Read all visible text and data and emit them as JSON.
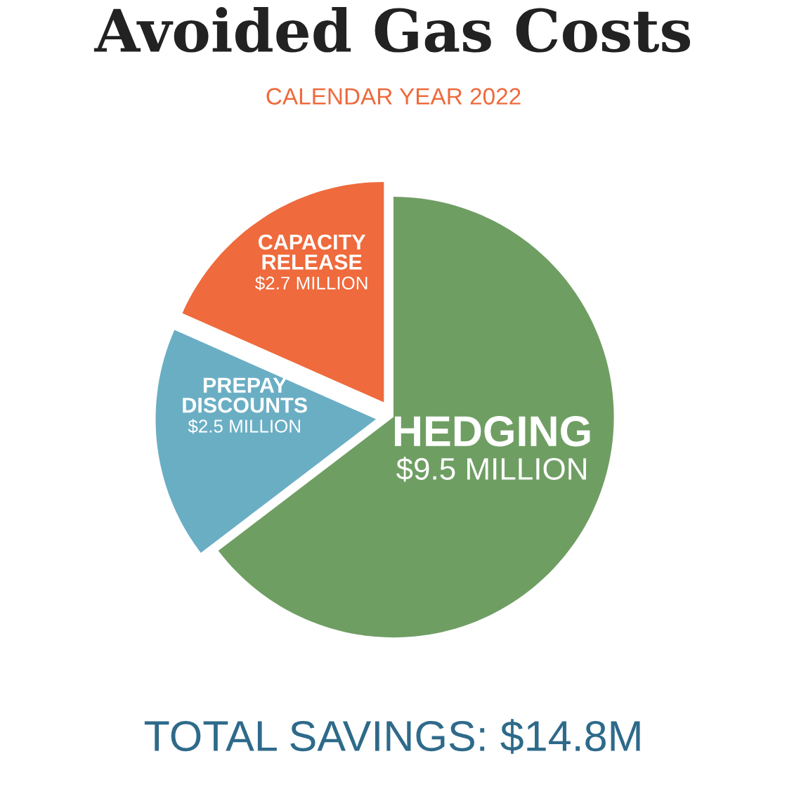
{
  "chart_data": {
    "type": "pie",
    "title": "Avoided Gas Costs",
    "subtitle": "CALENDAR YEAR 2022",
    "categories": [
      "HEDGING",
      "PREPAY\nDISCOUNTS",
      "CAPACITY\nRELEASE"
    ],
    "values": [
      9.5,
      2.5,
      2.7
    ],
    "value_labels": [
      "$9.5 MILLION",
      "$2.5 MILLION",
      "$2.7 MILLION"
    ],
    "colors": [
      "#6f9e63",
      "#6aaec4",
      "#ef6a3c"
    ],
    "annotations": [
      "TOTAL SAVINGS: $14.8M"
    ],
    "legend": false
  }
}
